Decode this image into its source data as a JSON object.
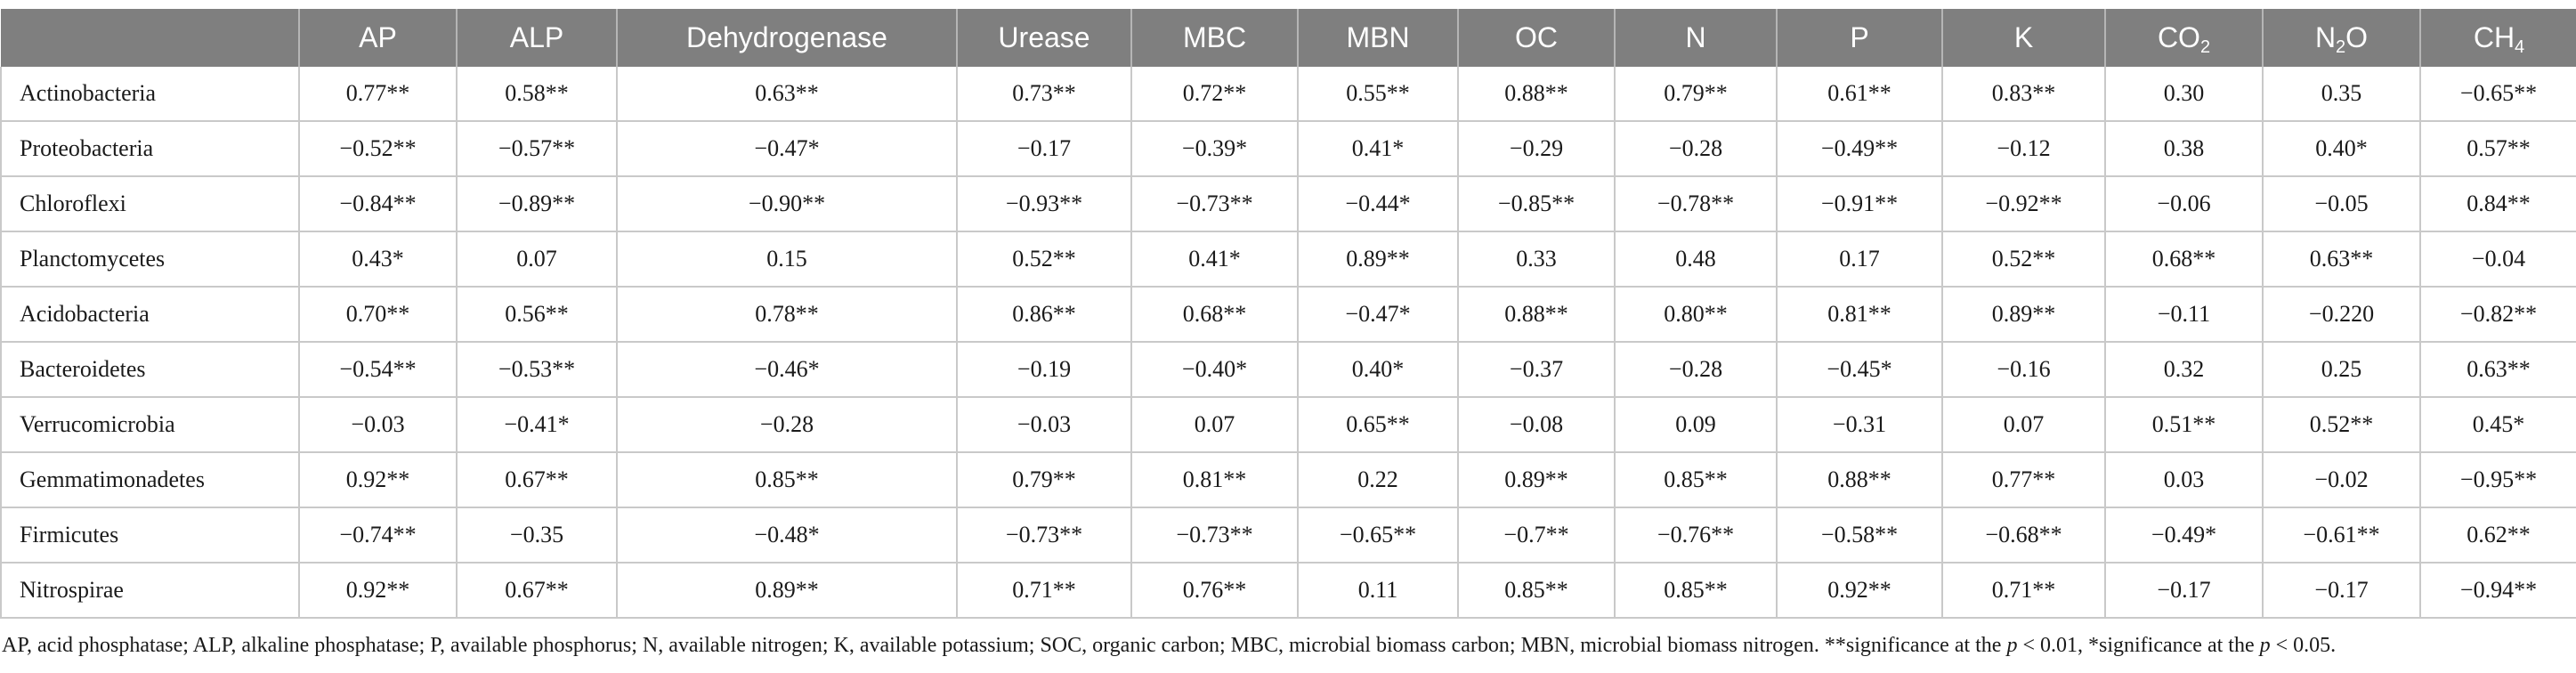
{
  "table": {
    "corner": "",
    "columns": [
      {
        "key": "ap",
        "base": "AP",
        "sub": ""
      },
      {
        "key": "alp",
        "base": "ALP",
        "sub": ""
      },
      {
        "key": "dehydrogenase",
        "base": "Dehydrogenase",
        "sub": ""
      },
      {
        "key": "urease",
        "base": "Urease",
        "sub": ""
      },
      {
        "key": "mbc",
        "base": "MBC",
        "sub": ""
      },
      {
        "key": "mbn",
        "base": "MBN",
        "sub": ""
      },
      {
        "key": "oc",
        "base": "OC",
        "sub": ""
      },
      {
        "key": "n",
        "base": "N",
        "sub": ""
      },
      {
        "key": "p",
        "base": "P",
        "sub": ""
      },
      {
        "key": "k",
        "base": "K",
        "sub": ""
      },
      {
        "key": "co2",
        "base": "CO",
        "sub": "2"
      },
      {
        "key": "n2o",
        "base": "N",
        "sub": "2",
        "tail": "O"
      },
      {
        "key": "ch4",
        "base": "CH",
        "sub": "4"
      }
    ],
    "rows": [
      {
        "label": "Actinobacteria",
        "cells": [
          "0.77**",
          "0.58**",
          "0.63**",
          "0.73**",
          "0.72**",
          "0.55**",
          "0.88**",
          "0.79**",
          "0.61**",
          "0.83**",
          "0.30",
          "0.35",
          "−0.65**"
        ]
      },
      {
        "label": "Proteobacteria",
        "cells": [
          "−0.52**",
          "−0.57**",
          "−0.47*",
          "−0.17",
          "−0.39*",
          "0.41*",
          "−0.29",
          "−0.28",
          "−0.49**",
          "−0.12",
          "0.38",
          "0.40*",
          "0.57**"
        ]
      },
      {
        "label": "Chloroflexi",
        "cells": [
          "−0.84**",
          "−0.89**",
          "−0.90**",
          "−0.93**",
          "−0.73**",
          "−0.44*",
          "−0.85**",
          "−0.78**",
          "−0.91**",
          "−0.92**",
          "−0.06",
          "−0.05",
          "0.84**"
        ]
      },
      {
        "label": "Planctomycetes",
        "cells": [
          "0.43*",
          "0.07",
          "0.15",
          "0.52**",
          "0.41*",
          "0.89**",
          "0.33",
          "0.48",
          "0.17",
          "0.52**",
          "0.68**",
          "0.63**",
          "−0.04"
        ]
      },
      {
        "label": "Acidobacteria",
        "cells": [
          "0.70**",
          "0.56**",
          "0.78**",
          "0.86**",
          "0.68**",
          "−0.47*",
          "0.88**",
          "0.80**",
          "0.81**",
          "0.89**",
          "−0.11",
          "−0.220",
          "−0.82**"
        ]
      },
      {
        "label": "Bacteroidetes",
        "cells": [
          "−0.54**",
          "−0.53**",
          "−0.46*",
          "−0.19",
          "−0.40*",
          "0.40*",
          "−0.37",
          "−0.28",
          "−0.45*",
          "−0.16",
          "0.32",
          "0.25",
          "0.63**"
        ]
      },
      {
        "label": "Verrucomicrobia",
        "cells": [
          "−0.03",
          "−0.41*",
          "−0.28",
          "−0.03",
          "0.07",
          "0.65**",
          "−0.08",
          "0.09",
          "−0.31",
          "0.07",
          "0.51**",
          "0.52**",
          "0.45*"
        ]
      },
      {
        "label": "Gemmatimonadetes",
        "cells": [
          "0.92**",
          "0.67**",
          "0.85**",
          "0.79**",
          "0.81**",
          "0.22",
          "0.89**",
          "0.85**",
          "0.88**",
          "0.77**",
          "0.03",
          "−0.02",
          "−0.95**"
        ]
      },
      {
        "label": "Firmicutes",
        "cells": [
          "−0.74**",
          "−0.35",
          "−0.48*",
          "−0.73**",
          "−0.73**",
          "−0.65**",
          "−0.7**",
          "−0.76**",
          "−0.58**",
          "−0.68**",
          "−0.49*",
          "−0.61**",
          "0.62**"
        ]
      },
      {
        "label": "Nitrospirae",
        "cells": [
          "0.92**",
          "0.67**",
          "0.89**",
          "0.71**",
          "0.76**",
          "0.11",
          "0.85**",
          "0.85**",
          "0.92**",
          "0.71**",
          "−0.17",
          "−0.17",
          "−0.94**"
        ]
      }
    ]
  },
  "footnote": {
    "part1": "AP, acid phosphatase; ALP, alkaline phosphatase; P, available phosphorus; N, available nitrogen; K, available potassium; SOC, organic carbon; MBC, microbial biomass carbon; MBN, microbial biomass nitrogen. **significance at the ",
    "p1": "p",
    "part2": " < 0.01, *significance at the ",
    "p2": "p",
    "part3": " < 0.05."
  }
}
